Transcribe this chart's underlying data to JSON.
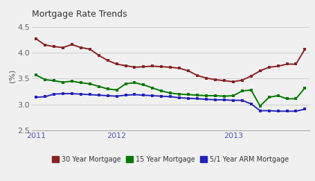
{
  "title": "Mortgage Rate Trends",
  "ylabel": "(%)",
  "ylim": [
    2.5,
    4.6
  ],
  "yticks": [
    2.5,
    3.0,
    3.5,
    4.0,
    4.5
  ],
  "x_tick_positions": [
    0,
    9,
    22
  ],
  "x_labels": [
    "2011",
    "2012",
    "2013"
  ],
  "x_label_color": "#5555bb",
  "bg_color": "#f0f0f0",
  "grid_color": "#cccccc",
  "title_color": "#333333",
  "line_30yr": {
    "label": "30 Year Mortgage",
    "color": "#882222",
    "marker": "s",
    "data": [
      4.27,
      4.15,
      4.12,
      4.1,
      4.16,
      4.1,
      4.07,
      3.95,
      3.85,
      3.78,
      3.75,
      3.72,
      3.73,
      3.74,
      3.73,
      3.72,
      3.7,
      3.65,
      3.56,
      3.51,
      3.48,
      3.46,
      3.44,
      3.47,
      3.55,
      3.65,
      3.72,
      3.74,
      3.78,
      3.78,
      4.07
    ]
  },
  "line_15yr": {
    "label": "15 Year Mortgage",
    "color": "#007700",
    "marker": "s",
    "data": [
      3.57,
      3.48,
      3.46,
      3.43,
      3.45,
      3.42,
      3.4,
      3.35,
      3.3,
      3.28,
      3.4,
      3.42,
      3.38,
      3.32,
      3.26,
      3.22,
      3.2,
      3.19,
      3.18,
      3.17,
      3.17,
      3.16,
      3.17,
      3.26,
      3.28,
      2.97,
      3.14,
      3.17,
      3.11,
      3.11,
      3.32
    ]
  },
  "line_arm": {
    "label": "5/1 Year ARM Mortgage",
    "color": "#2222bb",
    "marker": "s",
    "data": [
      3.14,
      3.15,
      3.2,
      3.21,
      3.21,
      3.2,
      3.19,
      3.18,
      3.17,
      3.16,
      3.18,
      3.19,
      3.18,
      3.17,
      3.16,
      3.15,
      3.13,
      3.12,
      3.11,
      3.1,
      3.09,
      3.09,
      3.08,
      3.08,
      3.01,
      2.88,
      2.88,
      2.87,
      2.87,
      2.87,
      2.91
    ]
  }
}
